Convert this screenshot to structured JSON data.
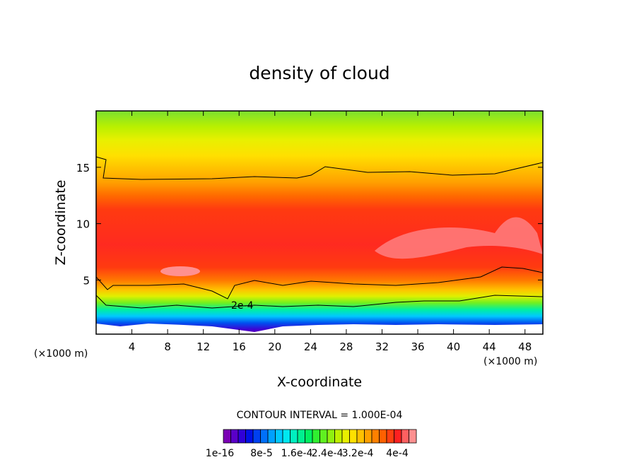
{
  "chart_data": {
    "type": "heatmap",
    "title": "density of cloud",
    "xlabel": "X-coordinate",
    "ylabel": "Z-coordinate",
    "x_unit_left": "(×1000 m)",
    "x_unit_right": "(×1000 m)",
    "xlim": [
      0,
      50
    ],
    "ylim": [
      0.2,
      20
    ],
    "x_ticks": [
      4,
      8,
      12,
      16,
      20,
      24,
      28,
      32,
      36,
      40,
      44,
      48
    ],
    "y_ticks": [
      5,
      10,
      15
    ],
    "contour_interval_text": "CONTOUR INTERVAL = 1.000E-04",
    "contour_label": "2e-4",
    "colorbar": {
      "labels": [
        "1e-16",
        "8e-5",
        "1.6e-4",
        "2.4e-4",
        "3.2e-4",
        "4e-4"
      ],
      "colors": [
        "#7a00b4",
        "#5a00c8",
        "#3000d8",
        "#0010e6",
        "#0040f0",
        "#0070f8",
        "#00a0ff",
        "#00c8ff",
        "#00e8f0",
        "#00f0c0",
        "#00f090",
        "#00f060",
        "#30f030",
        "#60f020",
        "#90f010",
        "#c0f000",
        "#e8f000",
        "#ffe000",
        "#ffc000",
        "#ffa000",
        "#ff8000",
        "#ff6000",
        "#ff4010",
        "#ff2020",
        "#ff6060",
        "#ff9090"
      ]
    },
    "grid": false
  }
}
